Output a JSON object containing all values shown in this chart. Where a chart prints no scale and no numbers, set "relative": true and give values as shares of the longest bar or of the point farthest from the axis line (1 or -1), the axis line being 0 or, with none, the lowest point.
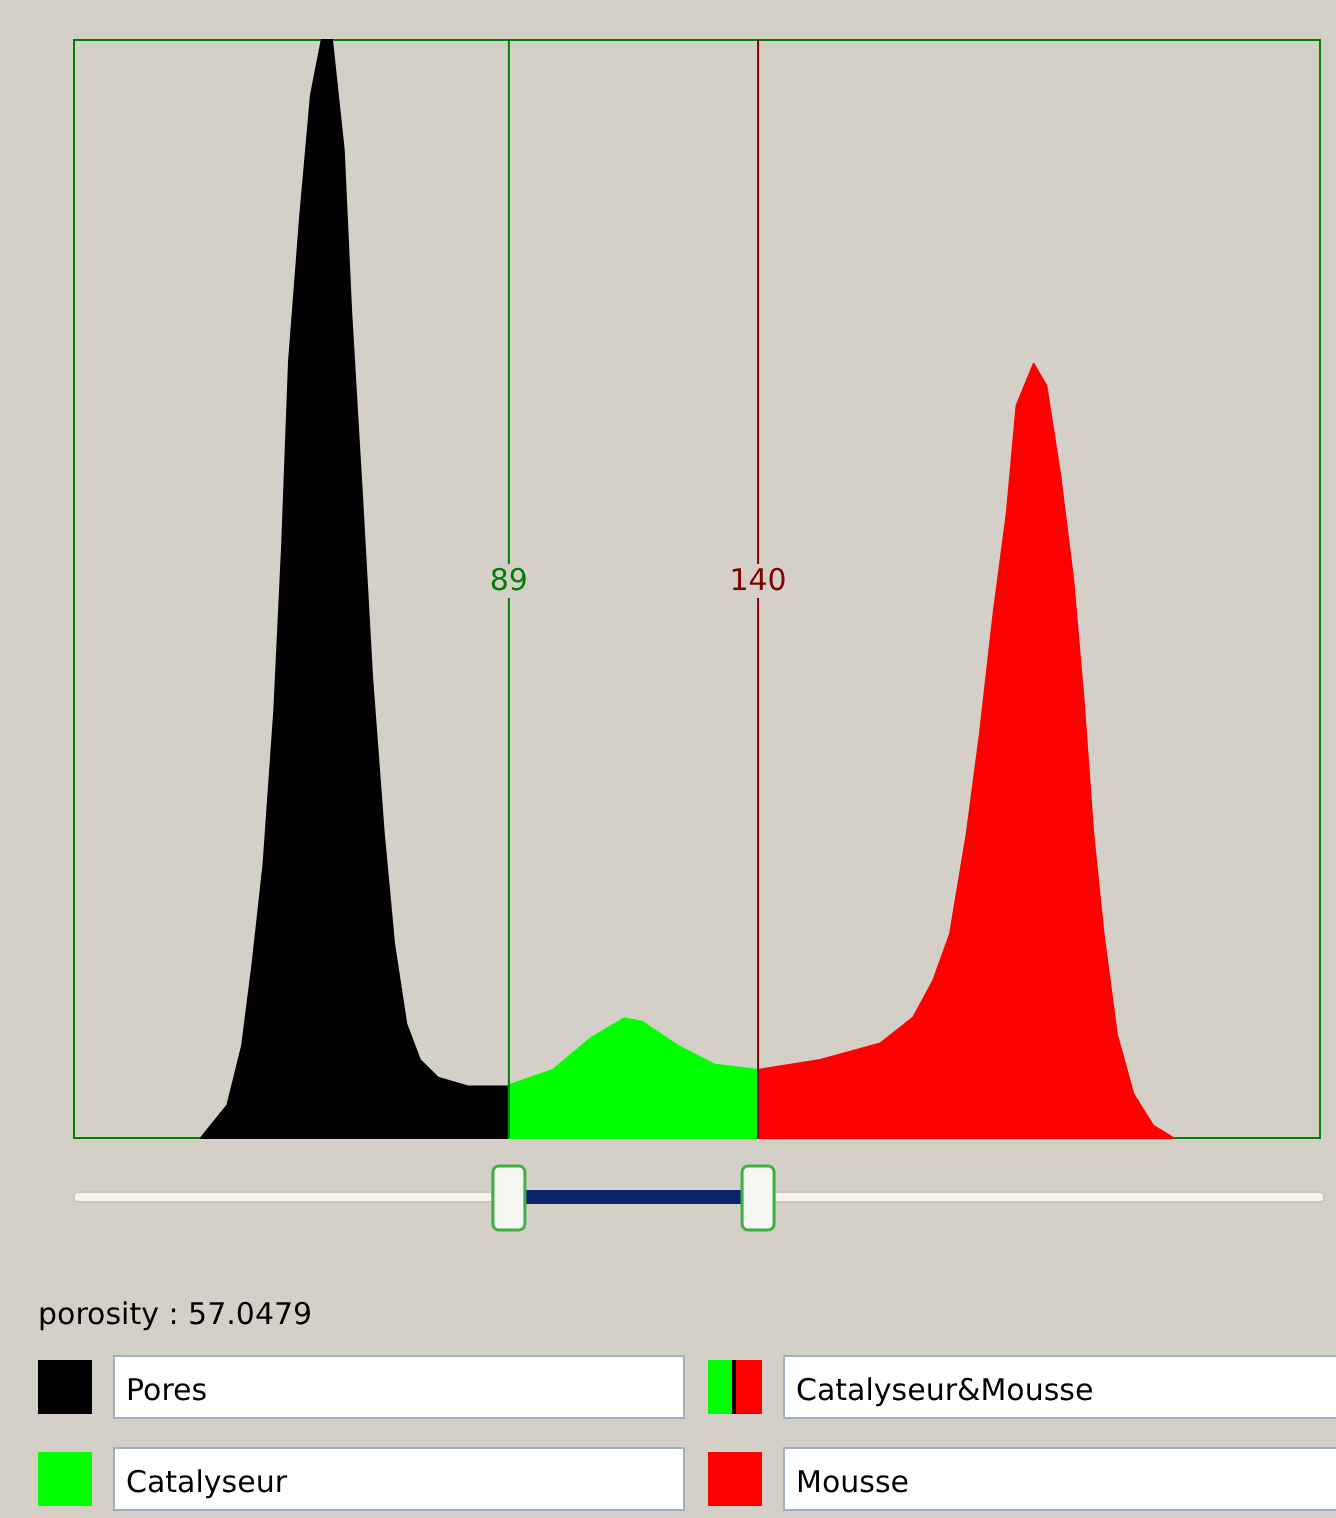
{
  "chart_data": {
    "type": "area",
    "relative": true,
    "xlim": [
      0,
      255
    ],
    "xticks": [
      89,
      140
    ],
    "tick_labels": "x",
    "legend": "bottom",
    "series": [
      {
        "name": "Pores",
        "color": "#000000",
        "x": [
          26,
          31.4,
          34.4,
          36.5,
          38.8,
          41,
          42.6,
          44,
          46.3,
          48.5,
          50.7,
          52.8,
          55.2,
          56.7,
          59,
          61,
          63.4,
          65.5,
          68,
          70.8,
          74.5,
          80.6,
          89
        ],
        "values": [
          0,
          0.03,
          0.084,
          0.157,
          0.25,
          0.39,
          0.54,
          0.707,
          0.84,
          0.95,
          1,
          1,
          0.9,
          0.754,
          0.58,
          0.42,
          0.277,
          0.177,
          0.104,
          0.071,
          0.055,
          0.047,
          0.047
        ]
      },
      {
        "name": "Catalyseur",
        "color": "#00ff00",
        "x": [
          89,
          98,
          105.8,
          112.6,
          116.2,
          123.6,
          131,
          140
        ],
        "values": [
          0.048,
          0.062,
          0.091,
          0.109,
          0.106,
          0.084,
          0.067,
          0.062
        ]
      },
      {
        "name": "Mousse",
        "color": "#ff0000",
        "x": [
          140,
          152.7,
          165,
          171.8,
          175.9,
          179.3,
          182.7,
          185.4,
          188.2,
          190.9,
          192.9,
          196.4,
          199,
          201.8,
          204.5,
          206.6,
          208.6,
          210.7,
          213.4,
          216.8,
          220.9,
          225
        ],
        "values": [
          0.062,
          0.071,
          0.086,
          0.11,
          0.144,
          0.186,
          0.277,
          0.368,
          0.478,
          0.569,
          0.667,
          0.705,
          0.685,
          0.605,
          0.508,
          0.4,
          0.277,
          0.186,
          0.095,
          0.04,
          0.011,
          0
        ]
      }
    ],
    "ref_lines": [
      {
        "axis": "x",
        "value": 89,
        "color": "#008000"
      },
      {
        "axis": "x",
        "value": 140,
        "color": "#800000"
      }
    ],
    "annotations": [
      "porosity : 57.0479",
      "Catalyseur&Mousse"
    ]
  }
}
